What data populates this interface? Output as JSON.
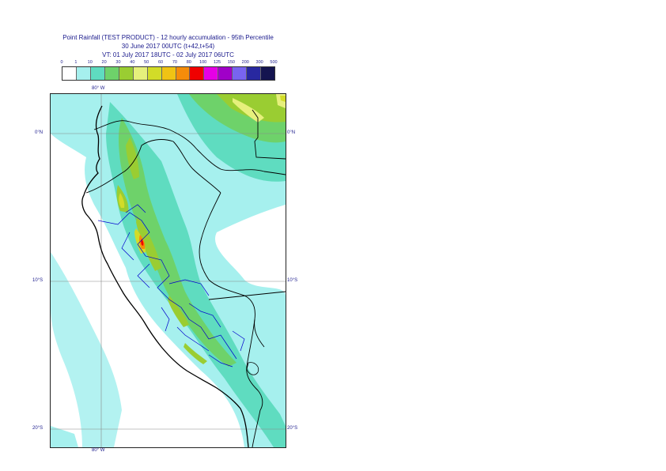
{
  "title": {
    "line1": "Point Rainfall (TEST PRODUCT) - 12 hourly accumulation - 95th Percentile",
    "line2": "30 June 2017 00UTC (t+42,t+54)",
    "line3": "VT: 01 July 2017 18UTC - 02 July 2017 06UTC"
  },
  "legend": {
    "ticks": [
      "0",
      "1",
      "10",
      "20",
      "30",
      "40",
      "50",
      "60",
      "70",
      "80",
      "100",
      "125",
      "150",
      "200",
      "300",
      "500"
    ],
    "colors": [
      "#ffffff",
      "#a6f0ee",
      "#5fdcc0",
      "#6ed26a",
      "#9acd32",
      "#e6f07c",
      "#d2dc28",
      "#f0c314",
      "#f58c0a",
      "#f00000",
      "#e600e6",
      "#a000c8",
      "#7864f0",
      "#2828a0",
      "#141450"
    ]
  },
  "map": {
    "lon_label_top": "80° W",
    "lon_label_bottom": "80° W",
    "lat_labels": [
      {
        "left": "0°N",
        "right": "0°N"
      },
      {
        "left": "10°S",
        "right": "10°S"
      },
      {
        "left": "20°S",
        "right": "20°S"
      }
    ],
    "colors": {
      "background": "#ffffff",
      "light_cyan": "#a6f0ee",
      "teal": "#5fdcc0",
      "green": "#6ed26a",
      "yellow_green": "#9acd32",
      "light_yellow": "#e6f07c",
      "yellow": "#d2dc28",
      "orange": "#f58c0a",
      "red": "#f00000",
      "coastline": "#000000",
      "border": "#000000",
      "province": "#0000cc",
      "grid": "#888888"
    }
  }
}
